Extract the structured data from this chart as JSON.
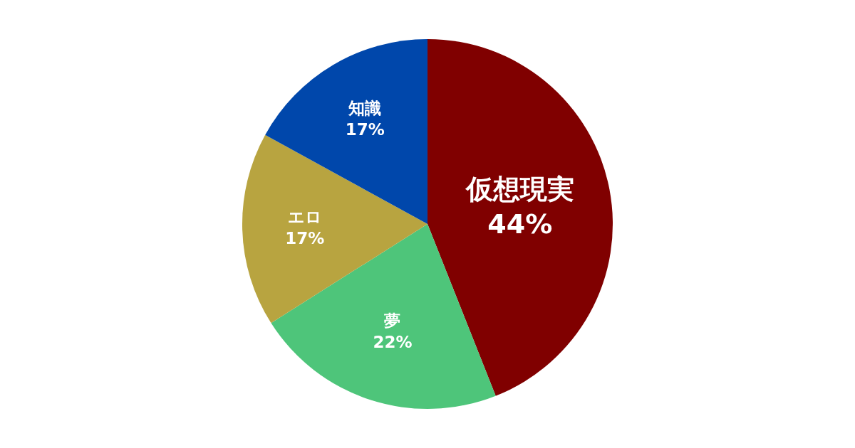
{
  "chart_data": {
    "type": "pie",
    "categories": [
      "仮想現実",
      "夢",
      "エロ",
      "知識"
    ],
    "values": [
      44,
      22,
      17,
      17
    ],
    "value_labels": [
      "44%",
      "22%",
      "17%",
      "17%"
    ],
    "colors": [
      "#800000",
      "#4ec57a",
      "#b8a440",
      "#0047ab"
    ],
    "legend": false
  }
}
